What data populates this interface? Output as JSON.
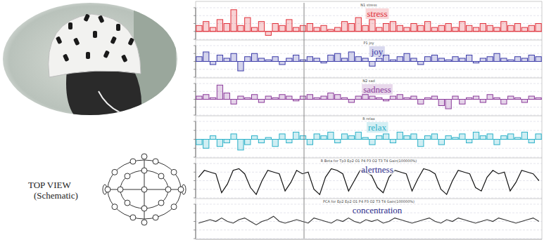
{
  "chart_data": [
    {
      "type": "bar",
      "title": "stress",
      "subtitle": "N1 stress",
      "color": "#e0303a",
      "grid": true,
      "tick_labels": false,
      "ylim": [
        -0.4,
        1.2
      ],
      "yticks": [
        -0.4,
        0,
        0.4,
        0.8,
        1.2
      ],
      "categories": [
        null,
        null,
        null,
        null,
        null,
        null,
        null,
        null,
        null,
        null,
        null,
        null,
        null,
        null,
        null,
        null,
        null,
        null,
        null,
        null,
        null,
        null,
        null,
        null,
        null,
        null,
        null,
        null,
        null,
        null,
        null,
        null,
        null,
        null,
        null,
        null,
        null,
        null,
        null,
        null,
        null,
        null,
        null,
        null,
        null,
        null,
        null,
        null,
        null,
        null
      ],
      "values": [
        0.3,
        0.5,
        0.2,
        0.6,
        0.4,
        1.1,
        0.3,
        0.7,
        0.2,
        0.5,
        -0.2,
        0.4,
        0.3,
        0.6,
        0.2,
        0.3,
        0.4,
        0.2,
        0.3,
        0.1,
        0.2,
        0.5,
        0.4,
        0.7,
        0.3,
        0.6,
        0.2,
        0.4,
        0.5,
        0.3,
        0.2,
        0.4,
        0.3,
        0.5,
        0.2,
        0.3,
        0.4,
        0.2,
        0.5,
        0.3,
        0.2,
        0.4,
        0.3,
        0.2,
        0.5,
        0.3,
        0.4,
        0.2,
        0.3,
        0.4
      ]
    },
    {
      "type": "bar",
      "title": "joy",
      "subtitle": "P1 joy",
      "color": "#3a3aa8",
      "grid": true,
      "tick_labels": false,
      "ylim": [
        -1,
        1
      ],
      "yticks": [
        -1,
        -0.5,
        0,
        0.5,
        1
      ],
      "categories": [
        null,
        null,
        null,
        null,
        null,
        null,
        null,
        null,
        null,
        null,
        null,
        null,
        null,
        null,
        null,
        null,
        null,
        null,
        null,
        null,
        null,
        null,
        null,
        null,
        null,
        null,
        null,
        null,
        null,
        null,
        null,
        null,
        null,
        null,
        null,
        null,
        null,
        null,
        null,
        null,
        null,
        null,
        null,
        null,
        null,
        null,
        null,
        null,
        null,
        null
      ],
      "values": [
        0.3,
        0.6,
        -0.2,
        0.4,
        0.2,
        0.5,
        -0.6,
        0.3,
        0.5,
        0.2,
        0.1,
        0.3,
        -0.2,
        0.2,
        0.4,
        0.1,
        0.3,
        0.2,
        -0.1,
        0.4,
        0.5,
        0.2,
        0.6,
        0.3,
        0.2,
        -0.3,
        0.2,
        0.4,
        0.1,
        0.3,
        0.5,
        0.2,
        -0.2,
        0.3,
        0.4,
        0.2,
        0.1,
        0.3,
        0.2,
        0.4,
        -0.1,
        0.2,
        0.3,
        0.5,
        0.2,
        0.1,
        0.3,
        0.2,
        0.4,
        0.3
      ]
    },
    {
      "type": "bar",
      "title": "sadness",
      "subtitle": "N2 sad",
      "color": "#8a3a9a",
      "grid": true,
      "tick_labels": false,
      "ylim": [
        -1,
        1
      ],
      "yticks": [
        -1,
        -0.5,
        0,
        0.5,
        1
      ],
      "categories": [
        null,
        null,
        null,
        null,
        null,
        null,
        null,
        null,
        null,
        null,
        null,
        null,
        null,
        null,
        null,
        null,
        null,
        null,
        null,
        null,
        null,
        null,
        null,
        null,
        null,
        null,
        null,
        null,
        null,
        null,
        null,
        null,
        null,
        null,
        null,
        null,
        null,
        null,
        null,
        null,
        null,
        null,
        null,
        null,
        null,
        null,
        null,
        null,
        null,
        null
      ],
      "values": [
        0.2,
        0.3,
        0.1,
        0.9,
        0.4,
        -0.3,
        0.2,
        0.1,
        0.3,
        -0.2,
        0.2,
        0.1,
        0.3,
        0.2,
        -0.1,
        0.2,
        0.3,
        0.1,
        0.2,
        0.4,
        0.3,
        0.1,
        -0.2,
        0.2,
        0.3,
        0.2,
        0.1,
        -0.1,
        0.2,
        0.3,
        0.1,
        0.2,
        -0.3,
        0.1,
        0.2,
        -0.4,
        -0.6,
        0.2,
        -0.3,
        0.1,
        0.2,
        -0.2,
        0.3,
        0.1,
        -0.3,
        0.2,
        0.1,
        -0.2,
        0.2,
        0.1
      ]
    },
    {
      "type": "bar",
      "title": "relax",
      "subtitle": "R relax",
      "color": "#2ab0c8",
      "grid": true,
      "tick_labels": false,
      "ylim": [
        -1,
        1
      ],
      "yticks": [
        -1,
        -0.5,
        0,
        0.5,
        1
      ],
      "categories": [
        null,
        null,
        null,
        null,
        null,
        null,
        null,
        null,
        null,
        null,
        null,
        null,
        null,
        null,
        null,
        null,
        null,
        null,
        null,
        null,
        null,
        null,
        null,
        null,
        null,
        null,
        null,
        null,
        null,
        null,
        null,
        null,
        null,
        null,
        null,
        null,
        null,
        null,
        null,
        null,
        null,
        null,
        null,
        null,
        null,
        null,
        null,
        null,
        null,
        null
      ],
      "values": [
        -0.3,
        -0.5,
        0.2,
        -0.4,
        -0.2,
        0.3,
        -0.6,
        -0.3,
        0.2,
        -0.2,
        0.1,
        -0.4,
        0.3,
        -0.2,
        0.4,
        0.2,
        -0.3,
        0.3,
        0.2,
        0.4,
        -0.2,
        0.3,
        0.2,
        0.4,
        0.1,
        -0.3,
        0.2,
        0.3,
        -0.2,
        0.4,
        0.2,
        0.3,
        -0.4,
        0.2,
        0.3,
        -0.3,
        0.2,
        0.1,
        0.3,
        -0.2,
        0.4,
        0.2,
        0.3,
        -0.3,
        0.2,
        0.3,
        0.1,
        0.4,
        -0.2,
        0.3
      ]
    },
    {
      "type": "line",
      "title": "alertness",
      "subtitle": "R Beta for Tp3 Ep2 O1 P4 P3 O2 T3 T4 Gain(100000%)",
      "color": "#111111",
      "grid": true,
      "tick_labels": false,
      "ylim": [
        0,
        1
      ],
      "yticks": [
        0,
        0.25,
        0.5,
        0.75,
        1
      ],
      "categories": [
        null,
        null,
        null,
        null,
        null,
        null,
        null,
        null,
        null,
        null,
        null,
        null,
        null,
        null,
        null,
        null,
        null,
        null,
        null,
        null,
        null,
        null,
        null,
        null,
        null,
        null,
        null,
        null,
        null,
        null,
        null,
        null,
        null,
        null,
        null,
        null,
        null,
        null,
        null,
        null,
        null,
        null,
        null,
        null,
        null,
        null,
        null,
        null,
        null,
        null,
        null,
        null,
        null,
        null,
        null,
        null,
        null,
        null,
        null,
        null
      ],
      "values": [
        0.6,
        0.8,
        0.75,
        0.7,
        0.15,
        0.4,
        0.8,
        0.85,
        0.7,
        0.3,
        0.1,
        0.5,
        0.8,
        0.75,
        0.7,
        0.2,
        0.45,
        0.8,
        0.7,
        0.75,
        0.25,
        0.1,
        0.6,
        0.85,
        0.8,
        0.7,
        0.2,
        0.5,
        0.8,
        0.75,
        0.65,
        0.3,
        0.15,
        0.6,
        0.8,
        0.75,
        0.7,
        0.2,
        0.55,
        0.85,
        0.8,
        0.7,
        0.25,
        0.1,
        0.5,
        0.8,
        0.75,
        0.7,
        0.3,
        0.2,
        0.6,
        0.8,
        0.7,
        0.75,
        0.2,
        0.45,
        0.8,
        0.75,
        0.7,
        0.5
      ]
    },
    {
      "type": "line",
      "title": "concentration",
      "subtitle": "PCA for Ep2 Ep2 O1 P4 P3 O2 T3 T4 Gain(100000%)",
      "color": "#333333",
      "grid": true,
      "tick_labels": false,
      "ylim": [
        0,
        1
      ],
      "yticks": [
        0,
        0.25,
        0.5,
        0.75,
        1
      ],
      "categories": [
        null,
        null,
        null,
        null,
        null,
        null,
        null,
        null,
        null,
        null,
        null,
        null,
        null,
        null,
        null,
        null,
        null,
        null,
        null,
        null,
        null,
        null,
        null,
        null,
        null,
        null,
        null,
        null,
        null,
        null,
        null,
        null,
        null,
        null,
        null,
        null,
        null,
        null,
        null,
        null,
        null,
        null,
        null,
        null,
        null,
        null,
        null,
        null,
        null,
        null,
        null,
        null,
        null,
        null,
        null,
        null,
        null,
        null,
        null,
        null
      ],
      "values": [
        0.45,
        0.5,
        0.55,
        0.5,
        0.6,
        0.5,
        0.45,
        0.55,
        0.6,
        0.5,
        0.4,
        0.5,
        0.55,
        0.65,
        0.5,
        0.45,
        0.5,
        0.55,
        0.5,
        0.45,
        0.6,
        0.55,
        0.5,
        0.45,
        0.55,
        0.5,
        0.6,
        0.5,
        0.45,
        0.55,
        0.5,
        0.55,
        0.45,
        0.5,
        0.6,
        0.55,
        0.5,
        0.45,
        0.5,
        0.55,
        0.6,
        0.5,
        0.45,
        0.55,
        0.5,
        0.6,
        0.55,
        0.5,
        0.45,
        0.5,
        0.55,
        0.5,
        0.6,
        0.55,
        0.5,
        0.45,
        0.5,
        0.55,
        0.6,
        0.5
      ]
    }
  ],
  "schematic": {
    "label_lines": [
      "TOP VIEW",
      "(Schematic)"
    ]
  }
}
